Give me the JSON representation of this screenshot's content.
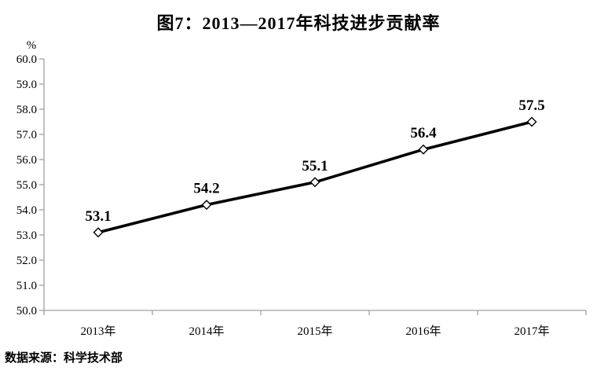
{
  "title": "图7：2013—2017年科技进步贡献率",
  "source_note": "数据来源：科学技术部",
  "chart_data": {
    "type": "line",
    "title": "图7：2013—2017年科技进步贡献率",
    "unit_label": "%",
    "categories": [
      "2013年",
      "2014年",
      "2015年",
      "2016年",
      "2017年"
    ],
    "series": [
      {
        "name": "科技进步贡献率",
        "values": [
          53.1,
          54.2,
          55.1,
          56.4,
          57.5
        ]
      }
    ],
    "point_labels": [
      "53.1",
      "54.2",
      "55.1",
      "56.4",
      "57.5"
    ],
    "ylim": [
      50.0,
      60.0
    ],
    "ytick_step": 1.0,
    "ytick_labels": [
      "60.0",
      "59.0",
      "58.0",
      "57.0",
      "56.0",
      "55.0",
      "54.0",
      "53.0",
      "52.0",
      "51.0",
      "50.0"
    ],
    "grid": false,
    "legend": false,
    "marker": "open-diamond",
    "colors": {
      "line": "#000000",
      "marker_fill": "#ffffff",
      "marker_stroke": "#000000",
      "axis": "#a0a0a0",
      "text": "#000000"
    },
    "source": "数据来源：科学技术部"
  }
}
